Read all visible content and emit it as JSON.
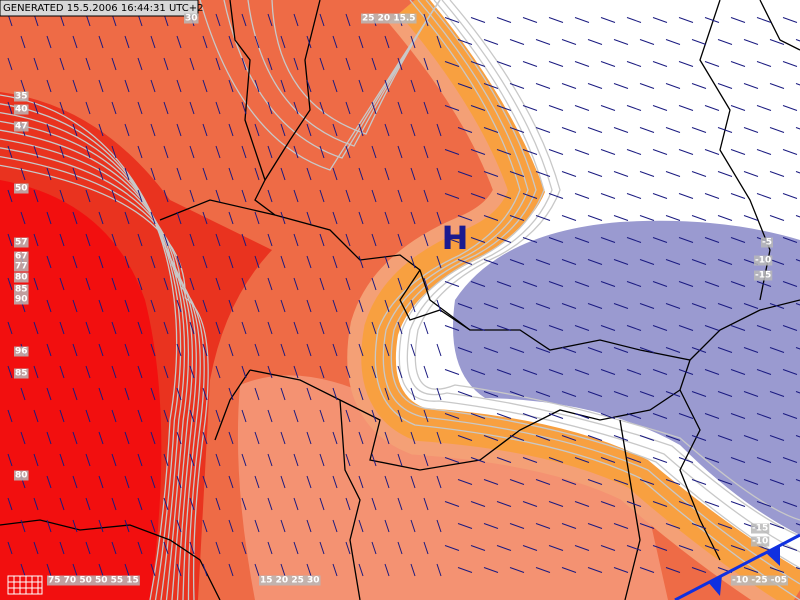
{
  "header": {
    "generated": "GENERATED 15.5.2006 16:44:31 UTC+2"
  },
  "pressure_center": {
    "label": "H"
  },
  "contour_labels": [
    "35",
    "40",
    "47",
    "50",
    "57",
    "67",
    "77",
    "80",
    "85",
    "90",
    "96",
    "85",
    "80",
    "30",
    "25 20 15.5",
    "-5",
    "-10",
    "-15",
    "-15",
    "-10",
    "75 70 50 50 55 15",
    "15 20 25 30",
    "-10 -25 -05"
  ]
}
